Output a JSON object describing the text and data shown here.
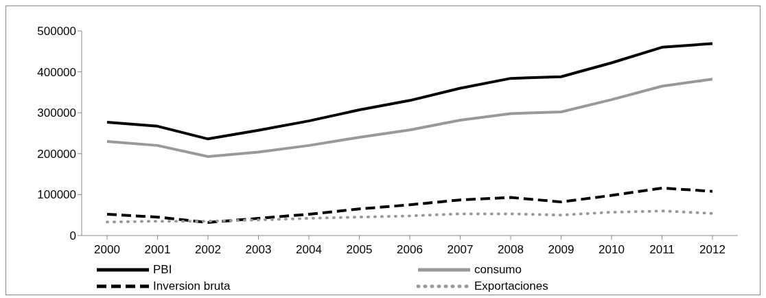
{
  "chart_data": {
    "type": "line",
    "categories": [
      "2000",
      "2001",
      "2002",
      "2003",
      "2004",
      "2005",
      "2006",
      "2007",
      "2008",
      "2009",
      "2010",
      "2011",
      "2012"
    ],
    "series": [
      {
        "name": "PBI",
        "color": "#000000",
        "line_style": "solid",
        "values": [
          277000,
          267000,
          236000,
          257000,
          280000,
          307000,
          330000,
          360000,
          384000,
          388000,
          422000,
          460000,
          469000
        ]
      },
      {
        "name": "consumo",
        "color": "#999999",
        "line_style": "solid",
        "values": [
          230000,
          220000,
          193000,
          204000,
          220000,
          240000,
          258000,
          282000,
          298000,
          302000,
          332000,
          365000,
          382000
        ]
      },
      {
        "name": "Inversion bruta",
        "color": "#000000",
        "line_style": "dashed",
        "values": [
          52000,
          45000,
          32000,
          42000,
          52000,
          65000,
          75000,
          87000,
          93000,
          82000,
          98000,
          116000,
          108000
        ]
      },
      {
        "name": "Exportaciones",
        "color": "#999999",
        "line_style": "dotted",
        "values": [
          33000,
          35000,
          35000,
          38000,
          42000,
          45000,
          48000,
          53000,
          53000,
          50000,
          57000,
          60000,
          54000
        ]
      }
    ],
    "ylim": [
      0,
      500000
    ],
    "yticks": [
      0,
      100000,
      200000,
      300000,
      400000,
      500000
    ],
    "grid": false,
    "legend": "bottom",
    "marker": "none"
  }
}
